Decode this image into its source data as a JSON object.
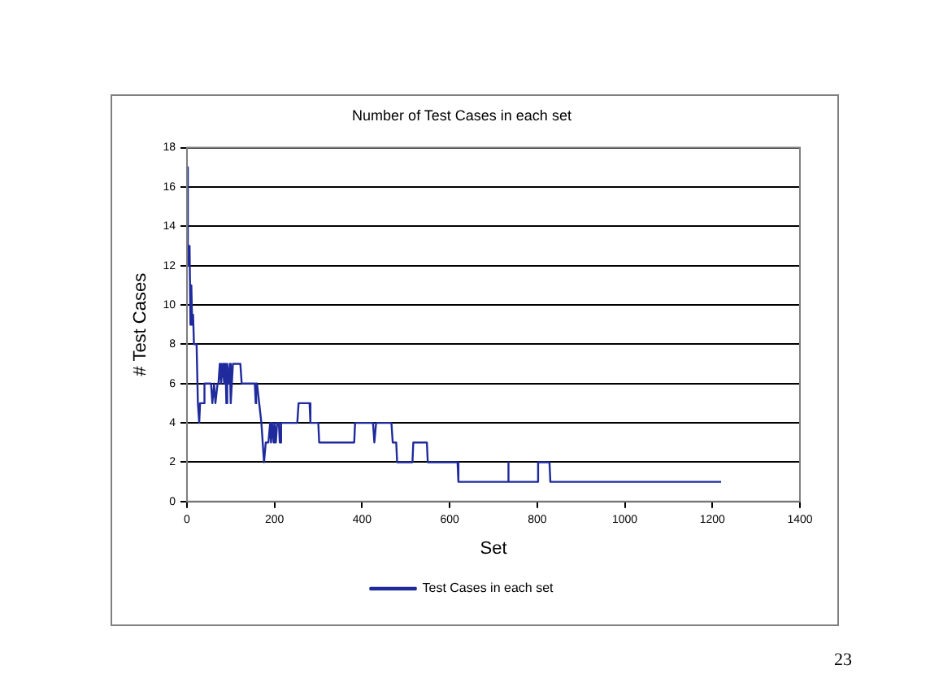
{
  "chart_data": {
    "type": "line",
    "title": "Number of Test Cases in each set",
    "xlabel": "Set",
    "ylabel": "# Test Cases",
    "series": [
      {
        "name": "Test Cases in each set",
        "color": "#1f2a9c",
        "x": [
          0,
          1,
          2,
          4,
          6,
          8,
          10,
          12,
          14,
          16,
          18,
          22,
          25,
          28,
          30,
          40,
          40,
          55,
          58,
          62,
          65,
          70,
          72,
          75,
          78,
          82,
          85,
          88,
          90,
          92,
          95,
          98,
          100,
          105,
          110,
          122,
          125,
          155,
          157,
          158,
          160,
          170,
          176,
          180,
          186,
          190,
          192,
          195,
          198,
          200,
          203,
          206,
          210,
          212,
          215,
          252,
          255,
          280,
          282,
          300,
          302,
          382,
          384,
          425,
          428,
          430,
          432,
          467,
          470,
          478,
          480,
          515,
          517,
          548,
          550,
          618,
          620,
          733,
          733,
          735,
          735,
          800,
          802,
          828,
          830,
          1220
        ],
        "values": [
          12,
          17,
          13,
          12,
          13,
          9,
          11,
          9,
          9.5,
          8,
          8,
          8,
          5,
          4,
          5,
          5,
          6,
          6,
          5,
          6,
          5,
          6,
          6,
          7,
          6,
          7,
          6,
          7,
          5,
          7,
          6,
          7,
          5,
          7,
          7,
          7,
          6,
          6,
          5,
          6,
          6,
          4,
          2,
          3,
          3,
          4,
          3,
          4,
          3,
          4,
          3,
          4,
          4,
          3,
          4,
          4,
          5,
          5,
          4,
          4,
          3,
          3,
          4,
          4,
          3,
          3,
          4,
          4,
          3,
          3,
          2,
          2,
          3,
          3,
          2,
          2,
          1,
          1,
          2,
          1,
          1,
          1,
          2,
          2,
          1,
          1
        ]
      }
    ],
    "xlim": [
      0,
      1400
    ],
    "xticks": [
      0,
      200,
      400,
      600,
      800,
      1000,
      1200,
      1400
    ],
    "ylim": [
      0,
      18
    ],
    "yticks": [
      0,
      2,
      4,
      6,
      8,
      10,
      12,
      14,
      16,
      18
    ],
    "grid": "y",
    "legend": "bottom",
    "marker": "none",
    "line_style": "solid",
    "annotations": [
      "23"
    ]
  }
}
